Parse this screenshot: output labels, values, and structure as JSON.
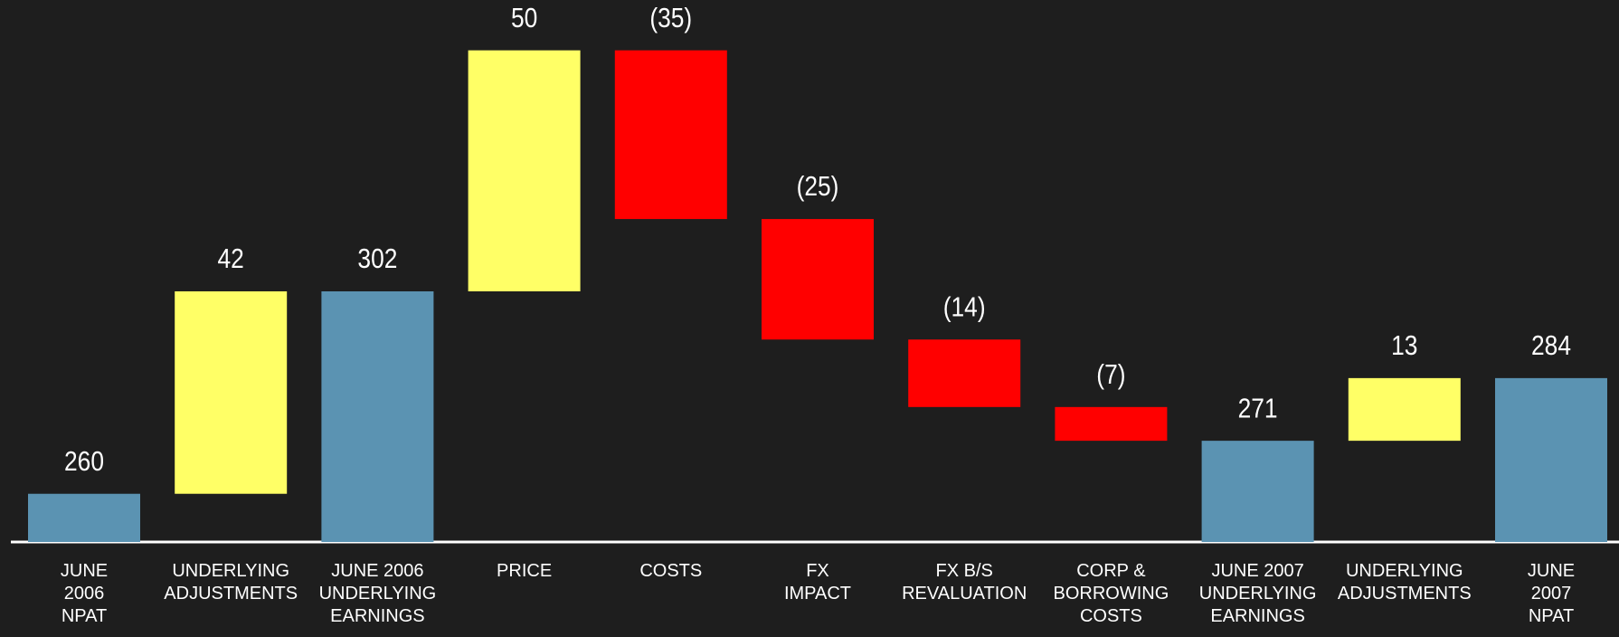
{
  "chart_data": {
    "type": "waterfall",
    "categories": [
      "JUNE\n2006\nNPAT",
      "UNDERLYING\nADJUSTMENTS",
      "JUNE 2006\nUNDERLYING\nEARNINGS",
      "PRICE",
      "COSTS",
      "FX\nIMPACT",
      "FX B/S\nREVALUATION",
      "CORP &\nBORROWING\nCOSTS",
      "JUNE 2007\nUNDERLYING\nEARNINGS",
      "UNDERLYING\nADJUSTMENTS",
      "JUNE\n2007\nNPAT"
    ],
    "values": [
      260,
      42,
      302,
      50,
      -35,
      -25,
      -14,
      -7,
      271,
      13,
      284
    ],
    "value_labels": [
      "260",
      "42",
      "302",
      "50",
      "(35)",
      "(25)",
      "(14)",
      "(7)",
      "271",
      "13",
      "284"
    ],
    "totals": [
      0,
      2,
      8,
      10
    ],
    "colors": {
      "total": "#5b93b2",
      "increase": "#ffff66",
      "decrease": "#ff0000"
    },
    "ylim": [
      250,
      360
    ]
  }
}
